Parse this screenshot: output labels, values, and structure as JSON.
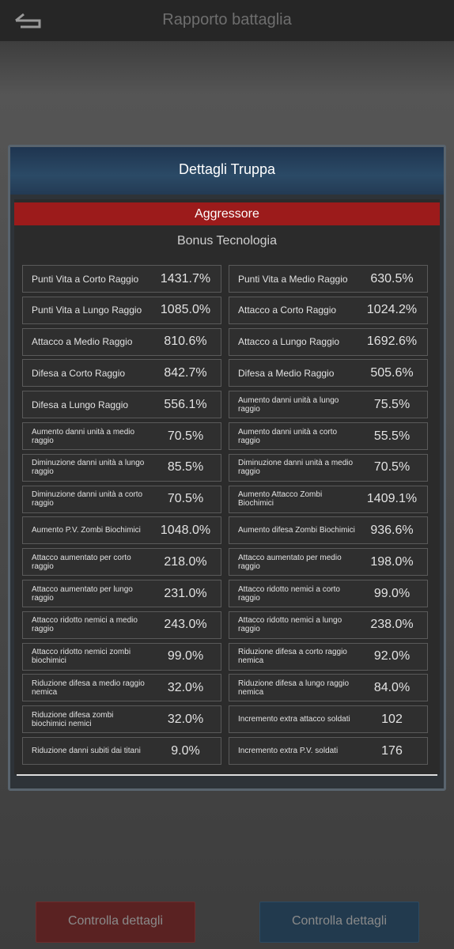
{
  "header": {
    "title": "Rapporto battaglia"
  },
  "panel": {
    "title": "Dettagli Truppa",
    "side": "Aggressore",
    "section": "Bonus Tecnologia",
    "rows": [
      [
        {
          "label": "Punti Vita a Corto Raggio",
          "value": "1431.7%"
        },
        {
          "label": "Punti Vita a Medio Raggio",
          "value": "630.5%"
        }
      ],
      [
        {
          "label": "Punti Vita a Lungo Raggio",
          "value": "1085.0%"
        },
        {
          "label": "Attacco a Corto Raggio",
          "value": "1024.2%"
        }
      ],
      [
        {
          "label": "Attacco a Medio Raggio",
          "value": "810.6%"
        },
        {
          "label": "Attacco a Lungo Raggio",
          "value": "1692.6%"
        }
      ],
      [
        {
          "label": "Difesa a Corto Raggio",
          "value": "842.7%"
        },
        {
          "label": "Difesa a Medio Raggio",
          "value": "505.6%"
        }
      ],
      [
        {
          "label": "Difesa a Lungo Raggio",
          "value": "556.1%"
        },
        {
          "label": "Aumento danni unità a lungo raggio",
          "value": "75.5%"
        }
      ],
      [
        {
          "label": "Aumento danni unità a medio raggio",
          "value": "70.5%"
        },
        {
          "label": "Aumento danni unità a corto raggio",
          "value": "55.5%"
        }
      ],
      [
        {
          "label": "Diminuzione danni unità a lungo raggio",
          "value": "85.5%"
        },
        {
          "label": "Diminuzione danni unità a medio raggio",
          "value": "70.5%"
        }
      ],
      [
        {
          "label": "Diminuzione danni unità a corto raggio",
          "value": "70.5%"
        },
        {
          "label": "Aumento Attacco Zombi Biochimici",
          "value": "1409.1%"
        }
      ],
      [
        {
          "label": "Aumento P.V. Zombi Biochimici",
          "value": "1048.0%"
        },
        {
          "label": "Aumento difesa Zombi Biochimici",
          "value": "936.6%"
        }
      ],
      [
        {
          "label": "Attacco aumentato per corto raggio",
          "value": "218.0%"
        },
        {
          "label": "Attacco aumentato per medio raggio",
          "value": "198.0%"
        }
      ],
      [
        {
          "label": "Attacco aumentato per lungo raggio",
          "value": "231.0%"
        },
        {
          "label": "Attacco ridotto nemici a corto raggio",
          "value": "99.0%"
        }
      ],
      [
        {
          "label": "Attacco ridotto nemici a medio raggio",
          "value": "243.0%"
        },
        {
          "label": "Attacco ridotto nemici a lungo raggio",
          "value": "238.0%"
        }
      ],
      [
        {
          "label": "Attacco ridotto nemici zombi biochimici",
          "value": "99.0%"
        },
        {
          "label": "Riduzione difesa a corto raggio nemica",
          "value": "92.0%"
        }
      ],
      [
        {
          "label": "Riduzione difesa a medio raggio nemica",
          "value": "32.0%"
        },
        {
          "label": "Riduzione difesa a lungo raggio nemica",
          "value": "84.0%"
        }
      ],
      [
        {
          "label": "Riduzione difesa zombi biochimici nemici",
          "value": "32.0%"
        },
        {
          "label": "Incremento extra attacco soldati",
          "value": "102"
        }
      ],
      [
        {
          "label": "Riduzione danni subiti dai titani",
          "value": "9.0%"
        },
        {
          "label": "Incremento extra P.V. soldati",
          "value": "176"
        }
      ]
    ]
  },
  "buttons": [
    "Controlla dettagli",
    "Controlla dettagli"
  ]
}
